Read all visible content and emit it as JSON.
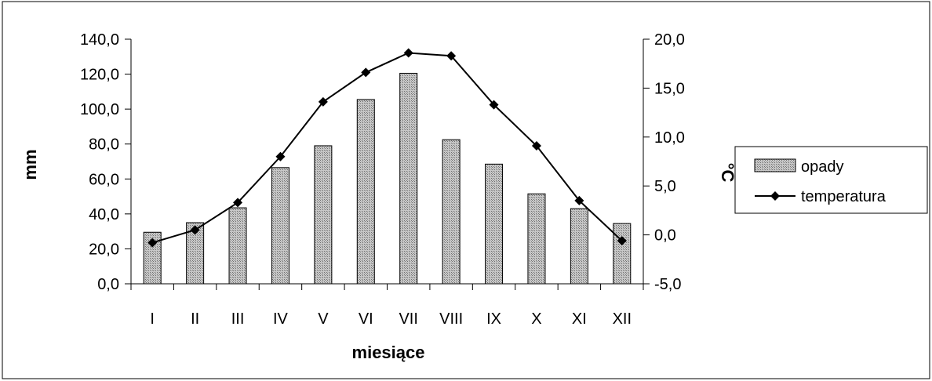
{
  "chart_data": {
    "type": "bar",
    "categories": [
      "I",
      "II",
      "III",
      "IV",
      "V",
      "VI",
      "VII",
      "VIII",
      "IX",
      "X",
      "XI",
      "XII"
    ],
    "series": [
      {
        "name": "opady",
        "type": "bar",
        "axis": "left",
        "values": [
          29.5,
          35.0,
          43.5,
          66.5,
          79.0,
          105.5,
          120.5,
          82.5,
          68.5,
          51.5,
          43.0,
          34.5
        ]
      },
      {
        "name": "temperatura",
        "type": "line",
        "axis": "right",
        "values": [
          -0.8,
          0.5,
          3.3,
          8.0,
          13.6,
          16.6,
          18.6,
          18.3,
          13.3,
          9.1,
          3.5,
          -0.6
        ]
      }
    ],
    "xlabel": "miesiące",
    "ylabel": "mm",
    "y2label": "°C",
    "ylim": [
      0,
      140
    ],
    "y2lim": [
      -5,
      20
    ],
    "yticks": [
      "0,0",
      "20,0",
      "40,0",
      "60,0",
      "80,0",
      "100,0",
      "120,0",
      "140,0"
    ],
    "y2ticks": [
      "-5,0",
      "0,0",
      "5,0",
      "10,0",
      "15,0",
      "20,0"
    ],
    "grid": false,
    "legend_position": "right",
    "colors": {
      "bar_fill": "#a6a6a6",
      "line": "#000000",
      "marker": "#000000"
    }
  }
}
